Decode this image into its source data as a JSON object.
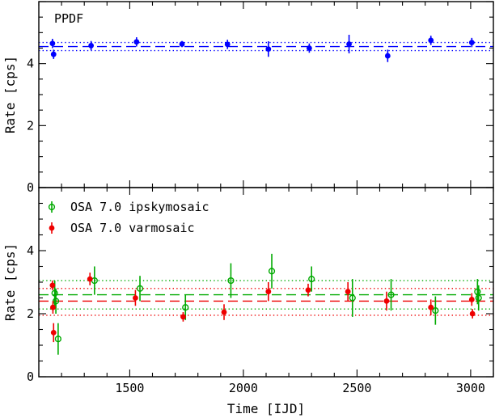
{
  "chart_data": [
    {
      "type": "scatter",
      "panel": "top",
      "annotation": "PPDF",
      "xlabel": "",
      "ylabel": "Rate [cps]",
      "xlim": [
        1100,
        3100
      ],
      "ylim": [
        0,
        6
      ],
      "yticks": [
        0,
        2,
        4
      ],
      "grid": false,
      "reference_lines": [
        {
          "style": "dashed",
          "color": "#0000ff",
          "y": 4.55
        },
        {
          "style": "dotted",
          "color": "#0000ff",
          "y": 4.68
        },
        {
          "style": "dotted",
          "color": "#0000ff",
          "y": 4.42
        }
      ],
      "series": [
        {
          "color": "#0000ff",
          "marker": "filled-circle",
          "x": [
            1160,
            1165,
            1330,
            1530,
            1730,
            1930,
            2110,
            2290,
            2465,
            2635,
            2825,
            3005
          ],
          "y": [
            4.65,
            4.3,
            4.58,
            4.7,
            4.63,
            4.62,
            4.47,
            4.5,
            4.63,
            4.25,
            4.75,
            4.68
          ],
          "err": [
            0.15,
            0.15,
            0.15,
            0.15,
            0.1,
            0.15,
            0.25,
            0.15,
            0.3,
            0.2,
            0.15,
            0.15
          ]
        }
      ]
    },
    {
      "type": "scatter",
      "panel": "bottom",
      "xlabel": "Time [IJD]",
      "ylabel": "Rate [cps]",
      "xlim": [
        1100,
        3100
      ],
      "ylim": [
        0,
        6
      ],
      "xticks": [
        1500,
        2000,
        2500,
        3000
      ],
      "yticks": [
        0,
        2,
        4
      ],
      "grid": false,
      "legend_placement": "top-left",
      "reference_lines": [
        {
          "style": "dashed",
          "color": "#00aa00",
          "y": 2.6
        },
        {
          "style": "dotted",
          "color": "#00aa00",
          "y": 3.05
        },
        {
          "style": "dotted",
          "color": "#00aa00",
          "y": 2.15
        },
        {
          "style": "dashed",
          "color": "#ee0000",
          "y": 2.4
        },
        {
          "style": "dotted",
          "color": "#ee0000",
          "y": 2.8
        },
        {
          "style": "dotted",
          "color": "#ee0000",
          "y": 1.95
        }
      ],
      "series": [
        {
          "name": "OSA 7.0 ipskymosaic",
          "color": "#00aa00",
          "marker": "open-circle",
          "x": [
            1170,
            1175,
            1185,
            1345,
            1545,
            1745,
            1945,
            2125,
            2300,
            2480,
            2650,
            2845,
            3030,
            3035
          ],
          "y": [
            2.65,
            2.4,
            1.2,
            3.05,
            2.8,
            2.2,
            3.05,
            3.35,
            3.1,
            2.5,
            2.6,
            2.1,
            2.7,
            2.5
          ],
          "err": [
            0.4,
            0.4,
            0.5,
            0.45,
            0.4,
            0.4,
            0.55,
            0.55,
            0.4,
            0.6,
            0.5,
            0.45,
            0.4,
            0.4
          ]
        },
        {
          "name": "OSA 7.0 varmosaic",
          "color": "#ee0000",
          "marker": "filled-circle",
          "x": [
            1160,
            1162,
            1165,
            1325,
            1525,
            1735,
            1915,
            2110,
            2285,
            2460,
            2630,
            2825,
            3005,
            3008
          ],
          "y": [
            2.9,
            2.2,
            1.4,
            3.1,
            2.5,
            1.9,
            2.05,
            2.7,
            2.75,
            2.7,
            2.4,
            2.2,
            2.45,
            2.0
          ],
          "err": [
            0.15,
            0.2,
            0.3,
            0.2,
            0.25,
            0.15,
            0.25,
            0.3,
            0.2,
            0.3,
            0.3,
            0.25,
            0.2,
            0.15
          ]
        }
      ]
    }
  ]
}
